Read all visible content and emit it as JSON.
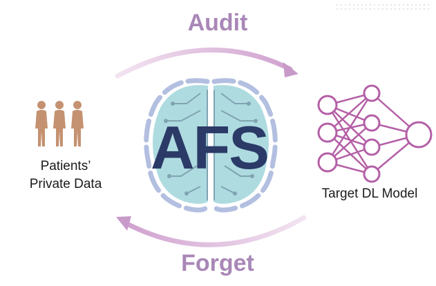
{
  "labels": {
    "audit": "Audit",
    "forget": "Forget",
    "patients_line1": "Patients’",
    "patients_line2": "Private Data",
    "model": "Target DL Model",
    "brain_text": "AFS"
  },
  "colors": {
    "arrow": "#d9bcd9",
    "arrow_head": "#c79ac9",
    "title": "#a987b7",
    "brain_fill": "#aedbe0",
    "circuit": "#7fa3b1",
    "brain_outline": "#b3bfe0",
    "neuron": "#b45fa6",
    "person": "#c59271"
  },
  "icons": {
    "patients": "people-icon",
    "brain": "brain-circuit-icon",
    "network": "neural-network-icon"
  }
}
